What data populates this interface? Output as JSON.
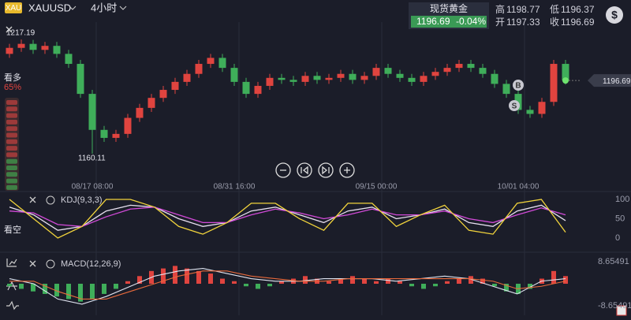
{
  "header": {
    "badge": "XAU",
    "symbol": "XAUUSD",
    "period": "4小时",
    "name": "现货黄金",
    "price": "1196.69",
    "change": "-0.04%",
    "high_label": "高",
    "high": "1198.77",
    "low_label": "低",
    "low": "1196.37",
    "open_label": "开",
    "open": "1197.33",
    "close_label": "收",
    "close": "1196.69",
    "currency_icon": "$"
  },
  "sentiment": {
    "bull_label": "看多",
    "bull_pct": "65%",
    "bear_label": "看空"
  },
  "chart_data": [
    {
      "type": "candlestick",
      "up_color": "#e0443f",
      "down_color": "#3fae5a",
      "ylim": [
        1146.3,
        1225.9
      ],
      "categories": [
        null,
        null,
        null,
        null,
        null,
        null,
        null,
        "08/17 08:00",
        null,
        null,
        null,
        null,
        null,
        null,
        null,
        null,
        null,
        null,
        null,
        "08/31 16:00",
        null,
        null,
        null,
        null,
        null,
        null,
        null,
        null,
        null,
        null,
        null,
        "09/15 00:00",
        null,
        null,
        null,
        null,
        null,
        null,
        null,
        null,
        null,
        null,
        null,
        "10/01 04:00",
        null,
        null,
        null,
        null
      ],
      "open": [
        1210,
        1213,
        1215,
        1212,
        1214,
        1210,
        1205,
        1190,
        1172,
        1168,
        1170,
        1178,
        1183,
        1188,
        1192,
        1196,
        1200,
        1205,
        1208,
        1203,
        1196,
        1190,
        1194,
        1198,
        1197,
        1196,
        1199,
        1197,
        1198,
        1200,
        1197,
        1199,
        1203,
        1200,
        1198,
        1196,
        1199,
        1201,
        1203,
        1205,
        1203,
        1200,
        1195,
        1190,
        1182,
        1180,
        1186,
        1205
      ],
      "high": [
        1215,
        1217.19,
        1217,
        1216,
        1216,
        1212,
        1207,
        1192,
        1174,
        1172,
        1180,
        1185,
        1190,
        1194,
        1198,
        1202,
        1207,
        1210,
        1210,
        1205,
        1198,
        1196,
        1200,
        1200,
        1199,
        1201,
        1201,
        1200,
        1202,
        1202,
        1201,
        1205,
        1205,
        1202,
        1200,
        1201,
        1203,
        1205,
        1207,
        1207,
        1205,
        1202,
        1197,
        1192,
        1184,
        1188,
        1207,
        1207
      ],
      "low": [
        1208,
        1211,
        1210,
        1210,
        1208,
        1203,
        1188,
        1160.11,
        1166,
        1166,
        1168,
        1176,
        1181,
        1186,
        1190,
        1194,
        1198,
        1203,
        1201,
        1194,
        1188,
        1188,
        1192,
        1195,
        1194,
        1194,
        1195,
        1195,
        1196,
        1195,
        1195,
        1197,
        1198,
        1196,
        1194,
        1194,
        1197,
        1199,
        1201,
        1201,
        1198,
        1193,
        1188,
        1180,
        1178,
        1178,
        1184,
        1194.69
      ],
      "close": [
        1213,
        1215,
        1212,
        1214,
        1210,
        1205,
        1190,
        1172,
        1168,
        1170,
        1178,
        1183,
        1188,
        1192,
        1196,
        1200,
        1205,
        1208,
        1203,
        1196,
        1190,
        1194,
        1198,
        1197,
        1196,
        1199,
        1197,
        1198,
        1200,
        1197,
        1199,
        1203,
        1200,
        1198,
        1196,
        1199,
        1201,
        1203,
        1205,
        1203,
        1200,
        1195,
        1190,
        1182,
        1180,
        1186,
        1205,
        1196.69
      ],
      "high_label": "1217.19",
      "low_label": "1160.11",
      "last_price": "1196.69",
      "markers": [
        "B",
        "S"
      ]
    },
    {
      "type": "line",
      "title": "KDJ(9,3,3)",
      "ylim": [
        0,
        100
      ],
      "yticks": [
        0,
        50,
        100
      ],
      "series": [
        {
          "color": "#e8e0f0",
          "values": [
            80,
            60,
            20,
            30,
            70,
            85,
            80,
            50,
            30,
            40,
            70,
            80,
            60,
            40,
            70,
            80,
            50,
            60,
            75,
            40,
            30,
            70,
            85,
            45
          ]
        },
        {
          "color": "#d24ad8",
          "values": [
            70,
            65,
            35,
            30,
            55,
            75,
            80,
            60,
            40,
            40,
            60,
            75,
            65,
            50,
            60,
            75,
            60,
            60,
            70,
            50,
            40,
            60,
            78,
            60
          ]
        },
        {
          "color": "#f2d43c",
          "values": [
            100,
            50,
            0,
            30,
            100,
            100,
            80,
            30,
            10,
            40,
            90,
            90,
            50,
            20,
            90,
            90,
            30,
            60,
            85,
            20,
            10,
            90,
            100,
            15
          ]
        }
      ]
    },
    {
      "type": "macd",
      "title": "MACD(12,26,9)",
      "ylim": [
        -8.65491,
        8.65491
      ],
      "yticks": [
        {
          "value": -8.65491,
          "label": "-8.65491"
        },
        {
          "value": 8.65491,
          "label": "8.65491"
        }
      ],
      "up_color": "#e0443f",
      "down_color": "#3fae5a",
      "histogram": [
        -1,
        -2,
        -3,
        -4,
        -5,
        -6,
        -7,
        -6,
        -4,
        -2,
        1,
        3,
        5,
        6,
        7,
        6,
        5,
        4,
        2,
        1,
        -1,
        -2,
        -1,
        1,
        2,
        3,
        2,
        1,
        2,
        3,
        2,
        1,
        2,
        1,
        -1,
        -2,
        -1,
        1,
        2,
        3,
        2,
        -1,
        -3,
        -4,
        -2,
        2,
        5,
        3
      ],
      "series": [
        {
          "color": "#e0e4f0",
          "values": [
            2,
            0,
            -6,
            -8,
            -5,
            -1,
            3,
            5,
            6,
            4,
            2,
            1,
            1,
            2,
            2,
            2,
            1,
            2,
            3,
            2,
            -1,
            -4,
            1,
            2
          ]
        },
        {
          "color": "#e86a3c",
          "values": [
            1,
            1,
            -3,
            -6,
            -6,
            -3,
            0,
            3,
            5,
            5,
            3,
            2,
            1,
            1,
            2,
            2,
            2,
            2,
            2,
            2,
            1,
            -2,
            -1,
            1
          ]
        }
      ]
    }
  ]
}
